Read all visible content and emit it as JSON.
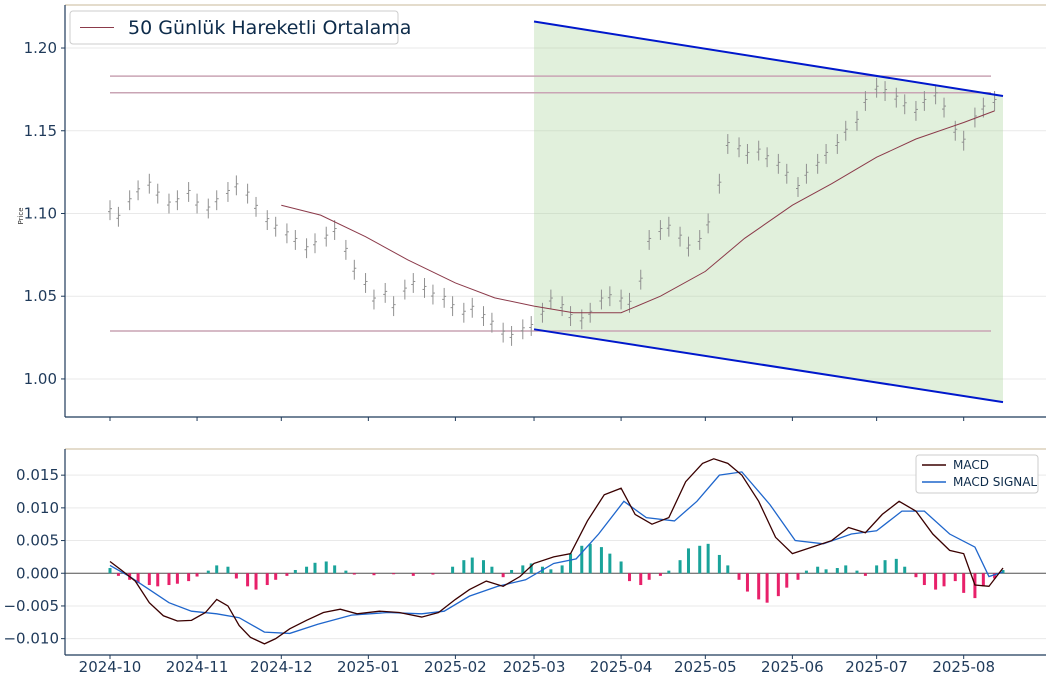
{
  "colors": {
    "candle": "#909090",
    "ma50": "#8b3a4a",
    "hlines": "#c9a4b4",
    "channel": "#0018cc",
    "channel_fill": "#a9d39a",
    "macd": "#3a0000",
    "signal": "#1f66cc",
    "hist_pos": "#1aa39a",
    "hist_neg": "#e8206a",
    "axis": "#1f3a5a",
    "grid": "#e9e9e9",
    "top_border": "#c8b89a"
  },
  "chart_data": [
    {
      "type": "candlestick",
      "ylabel": "Price",
      "ylim": [
        0.977,
        1.226
      ],
      "yticks": [
        "1.00",
        "1.05",
        "1.10",
        "1.15",
        "1.20"
      ],
      "grid": true,
      "legend_position": "top-left",
      "legend": [
        {
          "name": "50 Günlük Hareketli Ortalama"
        }
      ],
      "x_start": "2024-10-01",
      "x_end": "2025-08-15",
      "x_labels": [
        "2024-10",
        "2024-11",
        "2024-12",
        "2025-01",
        "2025-02",
        "2025-03",
        "2025-04",
        "2025-05",
        "2025-06",
        "2025-07",
        "2025-08"
      ],
      "close_series": [
        [
          "2024-10-01",
          1.102
        ],
        [
          "2024-10-04",
          1.098
        ],
        [
          "2024-10-08",
          1.108
        ],
        [
          "2024-10-11",
          1.114
        ],
        [
          "2024-10-15",
          1.118
        ],
        [
          "2024-10-18",
          1.112
        ],
        [
          "2024-10-22",
          1.106
        ],
        [
          "2024-10-25",
          1.108
        ],
        [
          "2024-10-29",
          1.113
        ],
        [
          "2024-11-01",
          1.106
        ],
        [
          "2024-11-05",
          1.103
        ],
        [
          "2024-11-08",
          1.108
        ],
        [
          "2024-11-12",
          1.113
        ],
        [
          "2024-11-15",
          1.117
        ],
        [
          "2024-11-19",
          1.112
        ],
        [
          "2024-11-22",
          1.104
        ],
        [
          "2024-11-26",
          1.096
        ],
        [
          "2024-11-29",
          1.092
        ],
        [
          "2024-12-03",
          1.088
        ],
        [
          "2024-12-06",
          1.084
        ],
        [
          "2024-12-10",
          1.079
        ],
        [
          "2024-12-13",
          1.082
        ],
        [
          "2024-12-17",
          1.086
        ],
        [
          "2024-12-20",
          1.09
        ],
        [
          "2024-12-24",
          1.078
        ],
        [
          "2024-12-27",
          1.066
        ],
        [
          "2024-12-31",
          1.058
        ],
        [
          "2025-01-03",
          1.048
        ],
        [
          "2025-01-07",
          1.052
        ],
        [
          "2025-01-10",
          1.044
        ],
        [
          "2025-01-14",
          1.054
        ],
        [
          "2025-01-17",
          1.058
        ],
        [
          "2025-01-21",
          1.055
        ],
        [
          "2025-01-24",
          1.051
        ],
        [
          "2025-01-28",
          1.049
        ],
        [
          "2025-01-31",
          1.044
        ],
        [
          "2025-02-04",
          1.04
        ],
        [
          "2025-02-07",
          1.043
        ],
        [
          "2025-02-11",
          1.038
        ],
        [
          "2025-02-14",
          1.034
        ],
        [
          "2025-02-18",
          1.028
        ],
        [
          "2025-02-21",
          1.026
        ],
        [
          "2025-02-25",
          1.03
        ],
        [
          "2025-02-28",
          1.032
        ],
        [
          "2025-03-04",
          1.04
        ],
        [
          "2025-03-07",
          1.048
        ],
        [
          "2025-03-11",
          1.044
        ],
        [
          "2025-03-14",
          1.038
        ],
        [
          "2025-03-18",
          1.036
        ],
        [
          "2025-03-21",
          1.04
        ],
        [
          "2025-03-25",
          1.048
        ],
        [
          "2025-03-28",
          1.05
        ],
        [
          "2025-04-01",
          1.048
        ],
        [
          "2025-04-04",
          1.046
        ],
        [
          "2025-04-08",
          1.06
        ],
        [
          "2025-04-11",
          1.084
        ],
        [
          "2025-04-15",
          1.09
        ],
        [
          "2025-04-18",
          1.092
        ],
        [
          "2025-04-22",
          1.086
        ],
        [
          "2025-04-25",
          1.08
        ],
        [
          "2025-04-29",
          1.084
        ],
        [
          "2025-05-02",
          1.094
        ],
        [
          "2025-05-06",
          1.118
        ],
        [
          "2025-05-09",
          1.142
        ],
        [
          "2025-05-13",
          1.14
        ],
        [
          "2025-05-16",
          1.136
        ],
        [
          "2025-05-20",
          1.138
        ],
        [
          "2025-05-23",
          1.134
        ],
        [
          "2025-05-27",
          1.13
        ],
        [
          "2025-05-30",
          1.124
        ],
        [
          "2025-06-03",
          1.116
        ],
        [
          "2025-06-06",
          1.124
        ],
        [
          "2025-06-10",
          1.13
        ],
        [
          "2025-06-13",
          1.136
        ],
        [
          "2025-06-17",
          1.142
        ],
        [
          "2025-06-20",
          1.15
        ],
        [
          "2025-06-24",
          1.156
        ],
        [
          "2025-06-27",
          1.168
        ],
        [
          "2025-07-01",
          1.176
        ],
        [
          "2025-07-04",
          1.174
        ],
        [
          "2025-07-08",
          1.17
        ],
        [
          "2025-07-11",
          1.166
        ],
        [
          "2025-07-15",
          1.162
        ],
        [
          "2025-07-18",
          1.168
        ],
        [
          "2025-07-22",
          1.172
        ],
        [
          "2025-07-25",
          1.164
        ],
        [
          "2025-07-29",
          1.15
        ],
        [
          "2025-08-01",
          1.144
        ],
        [
          "2025-08-05",
          1.158
        ],
        [
          "2025-08-08",
          1.164
        ],
        [
          "2025-08-12",
          1.168
        ]
      ],
      "ma50": [
        [
          "2024-12-01",
          1.105
        ],
        [
          "2024-12-15",
          1.099
        ],
        [
          "2024-12-31",
          1.086
        ],
        [
          "2025-01-15",
          1.072
        ],
        [
          "2025-02-01",
          1.058
        ],
        [
          "2025-02-15",
          1.049
        ],
        [
          "2025-03-01",
          1.044
        ],
        [
          "2025-03-15",
          1.04
        ],
        [
          "2025-04-01",
          1.04
        ],
        [
          "2025-04-15",
          1.05
        ],
        [
          "2025-05-01",
          1.065
        ],
        [
          "2025-05-15",
          1.085
        ],
        [
          "2025-06-01",
          1.105
        ],
        [
          "2025-06-15",
          1.118
        ],
        [
          "2025-07-01",
          1.134
        ],
        [
          "2025-07-15",
          1.145
        ],
        [
          "2025-08-01",
          1.155
        ],
        [
          "2025-08-12",
          1.162
        ]
      ],
      "horizontal_lines": [
        1.183,
        1.173,
        1.029
      ],
      "channel": {
        "start": "2025-03-01",
        "end": "2025-08-15",
        "upper": [
          1.216,
          1.171
        ],
        "lower": [
          1.03,
          0.986
        ]
      }
    },
    {
      "type": "macd",
      "ylim": [
        -0.0125,
        0.019
      ],
      "yticks": [
        "−0.010",
        "−0.005",
        "0.000",
        "0.005",
        "0.010",
        "0.015"
      ],
      "grid": true,
      "legend_position": "top-right",
      "legend": [
        {
          "name": "MACD"
        },
        {
          "name": "MACD SIGNAL"
        }
      ],
      "macd": [
        [
          "2024-10-01",
          0.0018
        ],
        [
          "2024-10-05",
          0.0005
        ],
        [
          "2024-10-10",
          -0.0012
        ],
        [
          "2024-10-15",
          -0.0045
        ],
        [
          "2024-10-20",
          -0.0065
        ],
        [
          "2024-10-25",
          -0.0073
        ],
        [
          "2024-10-30",
          -0.0072
        ],
        [
          "2024-11-04",
          -0.006
        ],
        [
          "2024-11-08",
          -0.004
        ],
        [
          "2024-11-12",
          -0.005
        ],
        [
          "2024-11-16",
          -0.008
        ],
        [
          "2024-11-20",
          -0.0098
        ],
        [
          "2024-11-25",
          -0.0108
        ],
        [
          "2024-11-29",
          -0.01
        ],
        [
          "2024-12-04",
          -0.0085
        ],
        [
          "2024-12-10",
          -0.0072
        ],
        [
          "2024-12-16",
          -0.006
        ],
        [
          "2024-12-22",
          -0.0055
        ],
        [
          "2024-12-28",
          -0.0062
        ],
        [
          "2025-01-05",
          -0.0058
        ],
        [
          "2025-01-12",
          -0.006
        ],
        [
          "2025-01-20",
          -0.0067
        ],
        [
          "2025-01-26",
          -0.006
        ],
        [
          "2025-02-01",
          -0.004
        ],
        [
          "2025-02-06",
          -0.0025
        ],
        [
          "2025-02-12",
          -0.0012
        ],
        [
          "2025-02-18",
          -0.002
        ],
        [
          "2025-02-24",
          -0.0005
        ],
        [
          "2025-03-01",
          0.0015
        ],
        [
          "2025-03-08",
          0.0025
        ],
        [
          "2025-03-14",
          0.003
        ],
        [
          "2025-03-20",
          0.008
        ],
        [
          "2025-03-26",
          0.012
        ],
        [
          "2025-04-01",
          0.013
        ],
        [
          "2025-04-06",
          0.009
        ],
        [
          "2025-04-12",
          0.0075
        ],
        [
          "2025-04-18",
          0.0085
        ],
        [
          "2025-04-24",
          0.014
        ],
        [
          "2025-04-30",
          0.0168
        ],
        [
          "2025-05-04",
          0.0175
        ],
        [
          "2025-05-09",
          0.0168
        ],
        [
          "2025-05-14",
          0.015
        ],
        [
          "2025-05-20",
          0.011
        ],
        [
          "2025-05-26",
          0.0055
        ],
        [
          "2025-06-01",
          0.003
        ],
        [
          "2025-06-08",
          0.004
        ],
        [
          "2025-06-15",
          0.005
        ],
        [
          "2025-06-21",
          0.007
        ],
        [
          "2025-06-27",
          0.0062
        ],
        [
          "2025-07-03",
          0.009
        ],
        [
          "2025-07-09",
          0.011
        ],
        [
          "2025-07-15",
          0.0095
        ],
        [
          "2025-07-21",
          0.006
        ],
        [
          "2025-07-27",
          0.0035
        ],
        [
          "2025-08-01",
          0.003
        ],
        [
          "2025-08-05",
          -0.0018
        ],
        [
          "2025-08-10",
          -0.002
        ],
        [
          "2025-08-15",
          0.0008
        ]
      ],
      "signal": [
        [
          "2024-10-01",
          0.0012
        ],
        [
          "2024-10-08",
          -0.0005
        ],
        [
          "2024-10-15",
          -0.0025
        ],
        [
          "2024-10-22",
          -0.0045
        ],
        [
          "2024-10-30",
          -0.0058
        ],
        [
          "2024-11-08",
          -0.0062
        ],
        [
          "2024-11-16",
          -0.0068
        ],
        [
          "2024-11-25",
          -0.009
        ],
        [
          "2024-12-04",
          -0.0092
        ],
        [
          "2024-12-14",
          -0.0078
        ],
        [
          "2024-12-26",
          -0.0064
        ],
        [
          "2025-01-08",
          -0.006
        ],
        [
          "2025-01-20",
          -0.0062
        ],
        [
          "2025-01-28",
          -0.0058
        ],
        [
          "2025-02-06",
          -0.0035
        ],
        [
          "2025-02-16",
          -0.002
        ],
        [
          "2025-02-26",
          -0.001
        ],
        [
          "2025-03-08",
          0.0015
        ],
        [
          "2025-03-16",
          0.0022
        ],
        [
          "2025-03-24",
          0.006
        ],
        [
          "2025-04-02",
          0.011
        ],
        [
          "2025-04-10",
          0.0085
        ],
        [
          "2025-04-20",
          0.008
        ],
        [
          "2025-04-28",
          0.011
        ],
        [
          "2025-05-06",
          0.015
        ],
        [
          "2025-05-14",
          0.0155
        ],
        [
          "2025-05-24",
          0.0105
        ],
        [
          "2025-06-02",
          0.005
        ],
        [
          "2025-06-12",
          0.0045
        ],
        [
          "2025-06-22",
          0.006
        ],
        [
          "2025-07-01",
          0.0065
        ],
        [
          "2025-07-10",
          0.0095
        ],
        [
          "2025-07-18",
          0.0095
        ],
        [
          "2025-07-27",
          0.006
        ],
        [
          "2025-08-05",
          0.004
        ],
        [
          "2025-08-10",
          -0.0005
        ],
        [
          "2025-08-15",
          0.0002
        ]
      ],
      "histogram": [
        [
          "2024-10-01",
          0.0008
        ],
        [
          "2024-10-04",
          -0.0004
        ],
        [
          "2024-10-08",
          -0.001
        ],
        [
          "2024-10-11",
          -0.0015
        ],
        [
          "2024-10-15",
          -0.0018
        ],
        [
          "2024-10-18",
          -0.002
        ],
        [
          "2024-10-22",
          -0.0018
        ],
        [
          "2024-10-25",
          -0.0016
        ],
        [
          "2024-10-29",
          -0.0012
        ],
        [
          "2024-11-01",
          -0.0005
        ],
        [
          "2024-11-05",
          0.0004
        ],
        [
          "2024-11-08",
          0.0012
        ],
        [
          "2024-11-12",
          0.001
        ],
        [
          "2024-11-15",
          -0.0008
        ],
        [
          "2024-11-19",
          -0.002
        ],
        [
          "2024-11-22",
          -0.0025
        ],
        [
          "2024-11-26",
          -0.0018
        ],
        [
          "2024-11-29",
          -0.001
        ],
        [
          "2024-12-03",
          -0.0004
        ],
        [
          "2024-12-06",
          0.0005
        ],
        [
          "2024-12-10",
          0.001
        ],
        [
          "2024-12-13",
          0.0016
        ],
        [
          "2024-12-17",
          0.0018
        ],
        [
          "2024-12-20",
          0.0012
        ],
        [
          "2024-12-24",
          0.0004
        ],
        [
          "2024-12-27",
          -0.0002
        ],
        [
          "2025-01-03",
          -0.0003
        ],
        [
          "2025-01-10",
          -0.0001
        ],
        [
          "2025-01-17",
          -0.0004
        ],
        [
          "2025-01-24",
          -0.0002
        ],
        [
          "2025-01-31",
          0.001
        ],
        [
          "2025-02-04",
          0.002
        ],
        [
          "2025-02-07",
          0.0024
        ],
        [
          "2025-02-11",
          0.002
        ],
        [
          "2025-02-14",
          0.001
        ],
        [
          "2025-02-18",
          -0.0006
        ],
        [
          "2025-02-21",
          0.0005
        ],
        [
          "2025-02-25",
          0.0012
        ],
        [
          "2025-02-28",
          0.0015
        ],
        [
          "2025-03-04",
          0.001
        ],
        [
          "2025-03-07",
          0.0006
        ],
        [
          "2025-03-11",
          0.0012
        ],
        [
          "2025-03-14",
          0.003
        ],
        [
          "2025-03-18",
          0.0042
        ],
        [
          "2025-03-21",
          0.0045
        ],
        [
          "2025-03-25",
          0.004
        ],
        [
          "2025-03-28",
          0.003
        ],
        [
          "2025-04-01",
          0.0018
        ],
        [
          "2025-04-04",
          -0.0012
        ],
        [
          "2025-04-08",
          -0.0018
        ],
        [
          "2025-04-11",
          -0.001
        ],
        [
          "2025-04-15",
          -0.0004
        ],
        [
          "2025-04-18",
          0.0004
        ],
        [
          "2025-04-22",
          0.002
        ],
        [
          "2025-04-25",
          0.0038
        ],
        [
          "2025-04-29",
          0.0042
        ],
        [
          "2025-05-02",
          0.0045
        ],
        [
          "2025-05-06",
          0.0028
        ],
        [
          "2025-05-09",
          0.0012
        ],
        [
          "2025-05-13",
          -0.001
        ],
        [
          "2025-05-16",
          -0.0028
        ],
        [
          "2025-05-20",
          -0.004
        ],
        [
          "2025-05-23",
          -0.0045
        ],
        [
          "2025-05-27",
          -0.0035
        ],
        [
          "2025-05-30",
          -0.0022
        ],
        [
          "2025-06-03",
          -0.001
        ],
        [
          "2025-06-06",
          0.0004
        ],
        [
          "2025-06-10",
          0.001
        ],
        [
          "2025-06-13",
          0.0006
        ],
        [
          "2025-06-17",
          0.0008
        ],
        [
          "2025-06-20",
          0.0012
        ],
        [
          "2025-06-24",
          0.0004
        ],
        [
          "2025-06-27",
          -0.0004
        ],
        [
          "2025-07-01",
          0.0012
        ],
        [
          "2025-07-04",
          0.002
        ],
        [
          "2025-07-08",
          0.0022
        ],
        [
          "2025-07-11",
          0.001
        ],
        [
          "2025-07-15",
          -0.0006
        ],
        [
          "2025-07-18",
          -0.0018
        ],
        [
          "2025-07-22",
          -0.0025
        ],
        [
          "2025-07-25",
          -0.002
        ],
        [
          "2025-07-29",
          -0.0012
        ],
        [
          "2025-08-01",
          -0.003
        ],
        [
          "2025-08-05",
          -0.0038
        ],
        [
          "2025-08-08",
          -0.002
        ],
        [
          "2025-08-12",
          -0.0008
        ],
        [
          "2025-08-15",
          0.0005
        ]
      ]
    }
  ]
}
